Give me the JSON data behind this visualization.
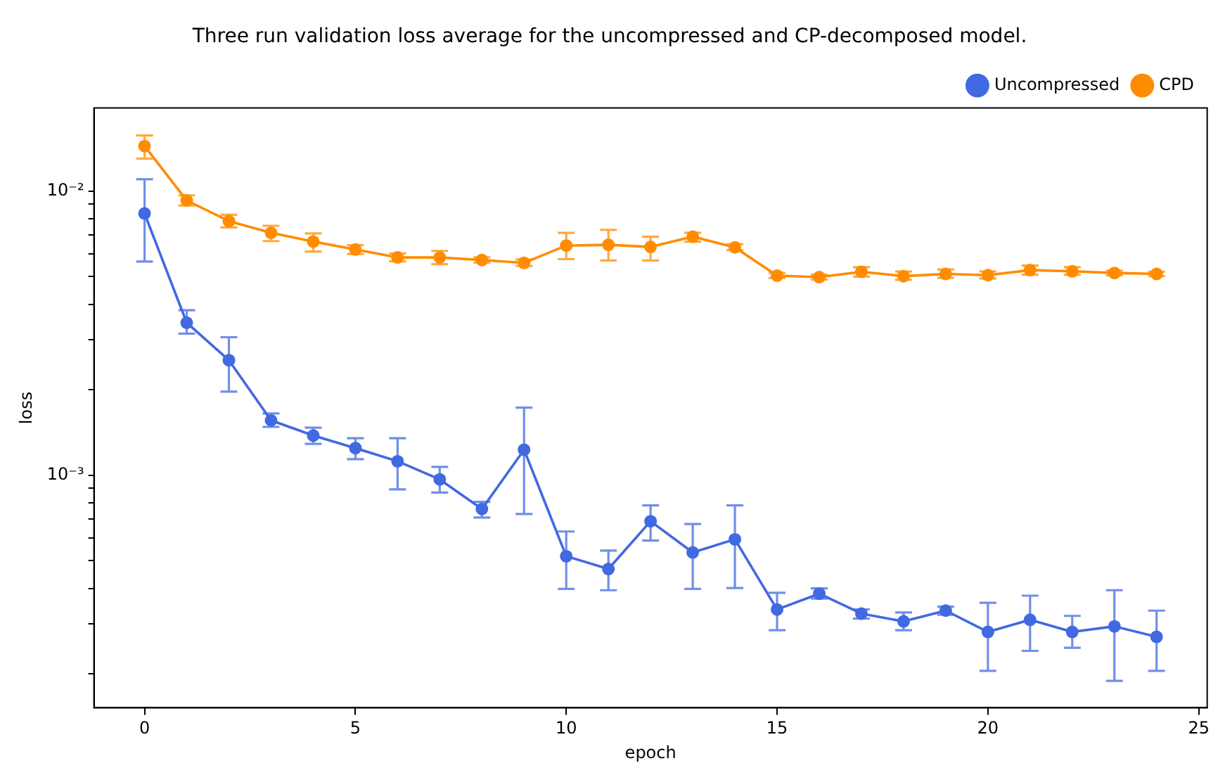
{
  "chart_data": {
    "type": "line",
    "title": "Three run validation loss average for the uncompressed and CP-decomposed model.",
    "xlabel": "epoch",
    "ylabel": "loss",
    "log": "y",
    "grid": false,
    "legend": "top right",
    "marker": "circle",
    "line_style": "solid",
    "x": [
      0,
      1,
      2,
      3,
      4,
      5,
      6,
      7,
      8,
      9,
      10,
      11,
      12,
      13,
      14,
      15,
      16,
      17,
      18,
      19,
      20,
      21,
      22,
      23,
      24
    ],
    "xlim": [
      -1.2,
      25.2
    ],
    "xticks": [
      0,
      5,
      10,
      15,
      20,
      25
    ],
    "ylim": [
      0.000152,
      0.0196
    ],
    "yticks": [
      {
        "value": 0.0002,
        "label": null
      },
      {
        "value": 0.0003,
        "label": null
      },
      {
        "value": 0.0004,
        "label": null
      },
      {
        "value": 0.0005,
        "label": null
      },
      {
        "value": 0.0006,
        "label": null
      },
      {
        "value": 0.0007,
        "label": null
      },
      {
        "value": 0.0008,
        "label": null
      },
      {
        "value": 0.0009,
        "label": null
      },
      {
        "value": 0.001,
        "label": "10⁻³"
      },
      {
        "value": 0.002,
        "label": null
      },
      {
        "value": 0.003,
        "label": null
      },
      {
        "value": 0.004,
        "label": null
      },
      {
        "value": 0.005,
        "label": null
      },
      {
        "value": 0.006,
        "label": null
      },
      {
        "value": 0.007,
        "label": null
      },
      {
        "value": 0.008,
        "label": null
      },
      {
        "value": 0.009,
        "label": null
      },
      {
        "value": 0.01,
        "label": "10⁻²"
      }
    ],
    "series": [
      {
        "name": "Uncompressed",
        "color": "#4169e1",
        "values": [
          0.00834,
          0.00344,
          0.00254,
          0.00156,
          0.00138,
          0.001246,
          0.00112,
          0.000967,
          0.000761,
          0.00123,
          0.000519,
          0.000468,
          0.000689,
          0.000535,
          0.000595,
          0.000337,
          0.000383,
          0.000326,
          0.000306,
          0.000334,
          0.000281,
          0.00031,
          0.000281,
          0.000294,
          0.00027
        ],
        "errors": [
          [
            0.00565,
            0.011
          ],
          [
            0.00315,
            0.00381
          ],
          [
            0.00197,
            0.00306
          ],
          [
            0.00148,
            0.00165
          ],
          [
            0.00129,
            0.00147
          ],
          [
            0.00114,
            0.00135
          ],
          [
            0.000892,
            0.00135
          ],
          [
            0.000869,
            0.00107
          ],
          [
            0.00071,
            0.000806
          ],
          [
            0.000731,
            0.00173
          ],
          [
            0.000398,
            0.000634
          ],
          [
            0.000394,
            0.000543
          ],
          [
            0.000589,
            0.000783
          ],
          [
            0.000398,
            0.000674
          ],
          [
            0.000401,
            0.000783
          ],
          [
            0.000285,
            0.000386
          ],
          [
            0.000368,
            0.0004
          ],
          [
            0.000313,
            0.000337
          ],
          [
            0.000285,
            0.000329
          ],
          [
            0.000323,
            0.000345
          ],
          [
            0.000205,
            0.000356
          ],
          [
            0.000241,
            0.000377
          ],
          [
            0.000247,
            0.00032
          ],
          [
            0.000189,
            0.000394
          ],
          [
            0.000205,
            0.000334
          ]
        ]
      },
      {
        "name": "CPD",
        "color": "#ff8c00",
        "values": [
          0.0144,
          0.00927,
          0.00784,
          0.00713,
          0.00664,
          0.00623,
          0.00584,
          0.00584,
          0.00572,
          0.00559,
          0.00643,
          0.00647,
          0.00636,
          0.00691,
          0.00634,
          0.00504,
          0.00498,
          0.0052,
          0.00502,
          0.00511,
          0.00506,
          0.00527,
          0.00522,
          0.00515,
          0.00511
        ],
        "errors": [
          [
            0.013,
            0.0157
          ],
          [
            0.0089,
            0.00966
          ],
          [
            0.00745,
            0.00825
          ],
          [
            0.00667,
            0.00755
          ],
          [
            0.00613,
            0.0071
          ],
          [
            0.00601,
            0.00645
          ],
          [
            0.00566,
            0.00603
          ],
          [
            0.00553,
            0.00616
          ],
          [
            0.0056,
            0.00585
          ],
          [
            0.00545,
            0.00575
          ],
          [
            0.00576,
            0.00713
          ],
          [
            0.0057,
            0.0073
          ],
          [
            0.0057,
            0.00691
          ],
          [
            0.00664,
            0.00714
          ],
          [
            0.0062,
            0.0065
          ],
          [
            0.00494,
            0.00515
          ],
          [
            0.00488,
            0.00508
          ],
          [
            0.005,
            0.0054
          ],
          [
            0.00487,
            0.00521
          ],
          [
            0.00495,
            0.0053
          ],
          [
            0.00492,
            0.00522
          ],
          [
            0.00508,
            0.00547
          ],
          [
            0.00508,
            0.0054
          ],
          [
            0.00505,
            0.00525
          ],
          [
            0.00502,
            0.0052
          ]
        ]
      }
    ]
  }
}
